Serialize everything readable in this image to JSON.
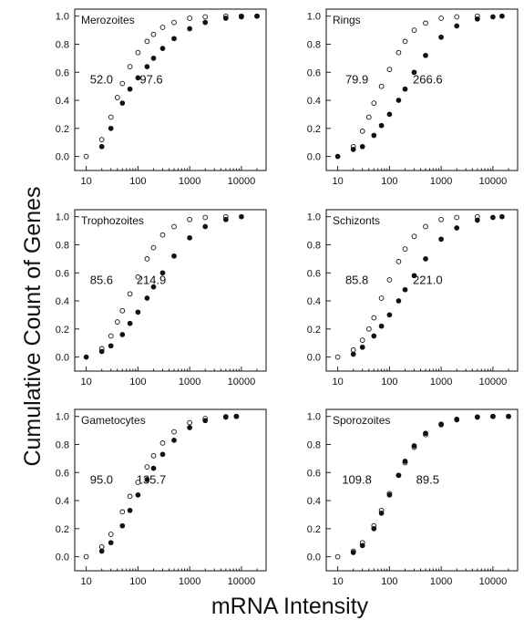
{
  "figure": {
    "ylabel": "Cumulative Count of Genes",
    "xlabel": "mRNA Intensity"
  },
  "chart_data": [
    {
      "type": "scatter",
      "title": "Merozoites",
      "xscale": "log",
      "xlim": [
        6,
        30000
      ],
      "ylim": [
        -0.1,
        1.05
      ],
      "xticks": [
        "10",
        "100",
        "1000",
        "10000"
      ],
      "yticks": [
        "0.0",
        "0.2",
        "0.4",
        "0.6",
        "0.8",
        "1.0"
      ],
      "annotations": [
        "52.0",
        "97.6"
      ],
      "series": [
        {
          "marker": "open",
          "x": [
            10,
            20,
            30,
            40,
            50,
            70,
            100,
            150,
            200,
            300,
            500,
            1000,
            2000,
            5000,
            10000,
            20000
          ],
          "y": [
            0.0,
            0.12,
            0.28,
            0.42,
            0.52,
            0.64,
            0.74,
            0.82,
            0.87,
            0.92,
            0.955,
            0.985,
            0.995,
            1.0,
            1.0,
            1.0
          ]
        },
        {
          "marker": "filled",
          "x": [
            20,
            30,
            50,
            70,
            100,
            150,
            200,
            300,
            500,
            1000,
            2000,
            5000,
            10000,
            20000
          ],
          "y": [
            0.07,
            0.2,
            0.38,
            0.48,
            0.56,
            0.64,
            0.7,
            0.77,
            0.84,
            0.91,
            0.955,
            0.985,
            0.995,
            1.0
          ]
        }
      ]
    },
    {
      "type": "scatter",
      "title": "Rings",
      "xscale": "log",
      "xlim": [
        6,
        30000
      ],
      "ylim": [
        -0.1,
        1.05
      ],
      "xticks": [
        "10",
        "100",
        "1000",
        "10000"
      ],
      "yticks": [
        "0.0",
        "0.2",
        "0.4",
        "0.6",
        "0.8",
        "1.0"
      ],
      "annotations": [
        "79.9",
        "266.6"
      ],
      "series": [
        {
          "marker": "open",
          "x": [
            20,
            30,
            40,
            50,
            70,
            100,
            150,
            200,
            300,
            500,
            1000,
            2000,
            5000
          ],
          "y": [
            0.07,
            0.18,
            0.28,
            0.38,
            0.5,
            0.62,
            0.74,
            0.82,
            0.9,
            0.95,
            0.985,
            0.995,
            1.0
          ]
        },
        {
          "marker": "filled",
          "x": [
            10,
            20,
            30,
            50,
            70,
            100,
            150,
            200,
            300,
            500,
            1000,
            2000,
            5000,
            10000,
            15000
          ],
          "y": [
            0.0,
            0.05,
            0.07,
            0.15,
            0.22,
            0.3,
            0.4,
            0.48,
            0.6,
            0.72,
            0.85,
            0.93,
            0.98,
            0.995,
            1.0
          ]
        }
      ]
    },
    {
      "type": "scatter",
      "title": "Trophozoites",
      "xscale": "log",
      "xlim": [
        6,
        30000
      ],
      "ylim": [
        -0.1,
        1.05
      ],
      "xticks": [
        "10",
        "100",
        "1000",
        "10000"
      ],
      "yticks": [
        "0.0",
        "0.2",
        "0.4",
        "0.6",
        "0.8",
        "1.0"
      ],
      "annotations": [
        "85.6",
        "214.9"
      ],
      "series": [
        {
          "marker": "open",
          "x": [
            20,
            30,
            40,
            50,
            70,
            100,
            150,
            200,
            300,
            500,
            1000,
            2000,
            5000
          ],
          "y": [
            0.06,
            0.15,
            0.25,
            0.33,
            0.45,
            0.57,
            0.7,
            0.78,
            0.87,
            0.93,
            0.98,
            0.995,
            1.0
          ]
        },
        {
          "marker": "filled",
          "x": [
            10,
            20,
            30,
            50,
            70,
            100,
            150,
            200,
            300,
            500,
            1000,
            2000,
            5000,
            10000
          ],
          "y": [
            0.0,
            0.04,
            0.08,
            0.16,
            0.24,
            0.32,
            0.42,
            0.5,
            0.6,
            0.72,
            0.85,
            0.93,
            0.98,
            1.0
          ]
        }
      ]
    },
    {
      "type": "scatter",
      "title": "Schizonts",
      "xscale": "log",
      "xlim": [
        6,
        30000
      ],
      "ylim": [
        -0.1,
        1.05
      ],
      "xticks": [
        "10",
        "100",
        "1000",
        "10000"
      ],
      "yticks": [
        "0.0",
        "0.2",
        "0.4",
        "0.6",
        "0.8",
        "1.0"
      ],
      "annotations": [
        "85.8",
        "221.0"
      ],
      "series": [
        {
          "marker": "open",
          "x": [
            10,
            20,
            30,
            40,
            50,
            70,
            100,
            150,
            200,
            300,
            500,
            1000,
            2000,
            5000
          ],
          "y": [
            0.0,
            0.05,
            0.12,
            0.2,
            0.28,
            0.42,
            0.55,
            0.68,
            0.77,
            0.86,
            0.93,
            0.98,
            0.995,
            1.0
          ]
        },
        {
          "marker": "filled",
          "x": [
            20,
            30,
            50,
            70,
            100,
            150,
            200,
            300,
            500,
            1000,
            2000,
            5000,
            10000,
            15000
          ],
          "y": [
            0.02,
            0.07,
            0.15,
            0.22,
            0.3,
            0.4,
            0.48,
            0.58,
            0.7,
            0.84,
            0.92,
            0.975,
            0.995,
            1.0
          ]
        }
      ]
    },
    {
      "type": "scatter",
      "title": "Gametocytes",
      "xscale": "log",
      "xlim": [
        6,
        30000
      ],
      "ylim": [
        -0.1,
        1.05
      ],
      "xticks": [
        "10",
        "100",
        "1000",
        "10000"
      ],
      "yticks": [
        "0.0",
        "0.2",
        "0.4",
        "0.6",
        "0.8",
        "1.0"
      ],
      "annotations": [
        "95.0",
        "135.7"
      ],
      "series": [
        {
          "marker": "open",
          "x": [
            10,
            20,
            30,
            50,
            70,
            100,
            150,
            200,
            300,
            500,
            1000,
            2000,
            5000,
            8000
          ],
          "y": [
            0.0,
            0.07,
            0.16,
            0.32,
            0.43,
            0.53,
            0.64,
            0.72,
            0.81,
            0.89,
            0.955,
            0.985,
            0.998,
            1.0
          ]
        },
        {
          "marker": "filled",
          "x": [
            20,
            30,
            50,
            70,
            100,
            150,
            200,
            300,
            500,
            1000,
            2000,
            5000,
            8000
          ],
          "y": [
            0.04,
            0.1,
            0.22,
            0.33,
            0.44,
            0.55,
            0.63,
            0.73,
            0.83,
            0.92,
            0.97,
            0.995,
            1.0
          ]
        }
      ]
    },
    {
      "type": "scatter",
      "title": "Sporozoites",
      "xscale": "log",
      "xlim": [
        6,
        30000
      ],
      "ylim": [
        -0.1,
        1.05
      ],
      "xticks": [
        "10",
        "100",
        "1000",
        "10000"
      ],
      "yticks": [
        "0.0",
        "0.2",
        "0.4",
        "0.6",
        "0.8",
        "1.0"
      ],
      "annotations": [
        "109.8",
        "89.5"
      ],
      "series": [
        {
          "marker": "open",
          "x": [
            10,
            20,
            30,
            50,
            70,
            100,
            150,
            200,
            300,
            500,
            1000,
            2000,
            5000,
            10000,
            20000
          ],
          "y": [
            0.0,
            0.04,
            0.1,
            0.22,
            0.33,
            0.45,
            0.58,
            0.67,
            0.78,
            0.87,
            0.94,
            0.975,
            0.995,
            1.0,
            1.0
          ]
        },
        {
          "marker": "filled",
          "x": [
            20,
            30,
            50,
            70,
            100,
            150,
            200,
            300,
            500,
            1000,
            2000,
            5000,
            10000,
            20000
          ],
          "y": [
            0.03,
            0.08,
            0.2,
            0.31,
            0.44,
            0.58,
            0.68,
            0.79,
            0.88,
            0.945,
            0.98,
            0.996,
            1.0,
            1.0
          ]
        }
      ]
    }
  ]
}
